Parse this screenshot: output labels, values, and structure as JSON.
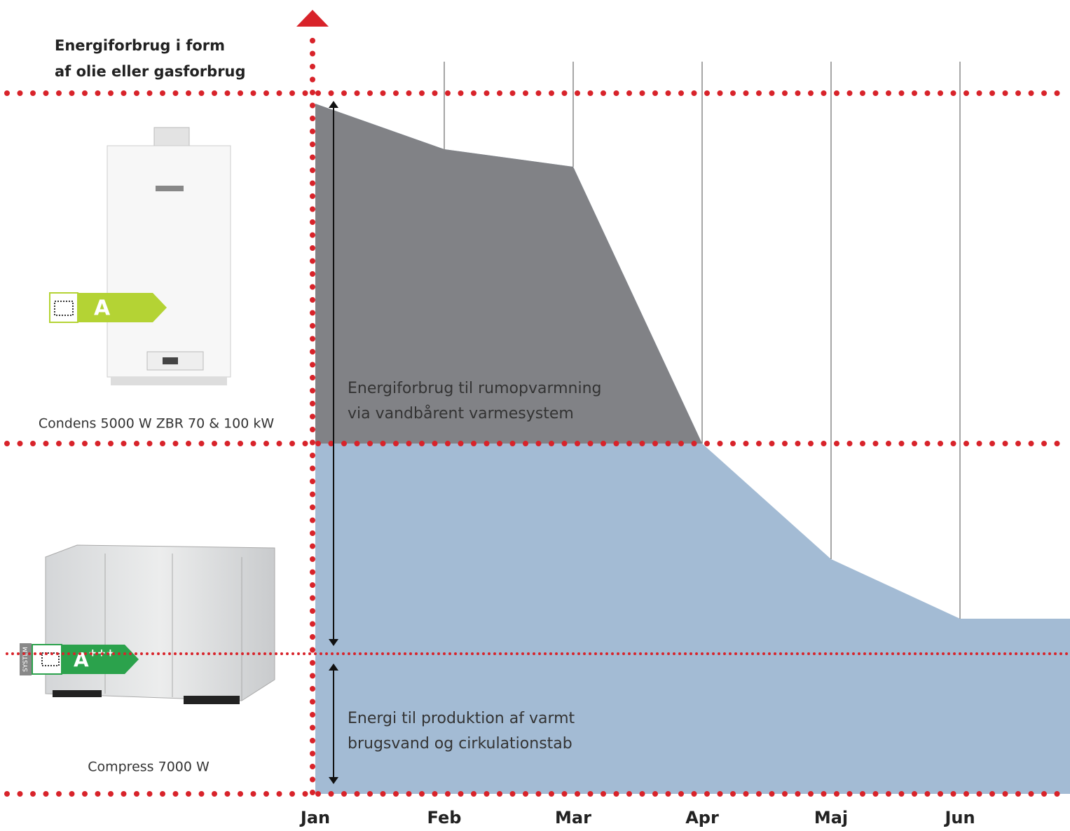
{
  "chart_data": {
    "type": "area",
    "title_lines": [
      "Energiforbrug i form",
      "af olie eller gasforbrug"
    ],
    "categories": [
      "Jan",
      "Feb",
      "Mar",
      "Apr",
      "Maj",
      "Jun"
    ],
    "values": [
      98.5,
      92,
      89.5,
      50,
      33.5,
      25
    ],
    "ylim": [
      0,
      100
    ],
    "threshold": 50,
    "hot_water_level": 20,
    "upper_color": "#818286",
    "lower_color": "#a3bbd4",
    "line_color": "#d8232a",
    "annotations": [
      [
        "Energiforbrug til rumopvarmning",
        "via vandbårent varmesystem"
      ],
      [
        "Energi til produktion af varmt",
        "brugsvand og cirkulationstab"
      ]
    ],
    "products": [
      {
        "name": "Condens 5000 W  ZBR 70 & 100 kW",
        "energy_class": "A"
      },
      {
        "name": "Compress 7000 W",
        "energy_class": "A",
        "energy_class_suffix": "+++",
        "tag": "SYSTEM"
      }
    ]
  }
}
